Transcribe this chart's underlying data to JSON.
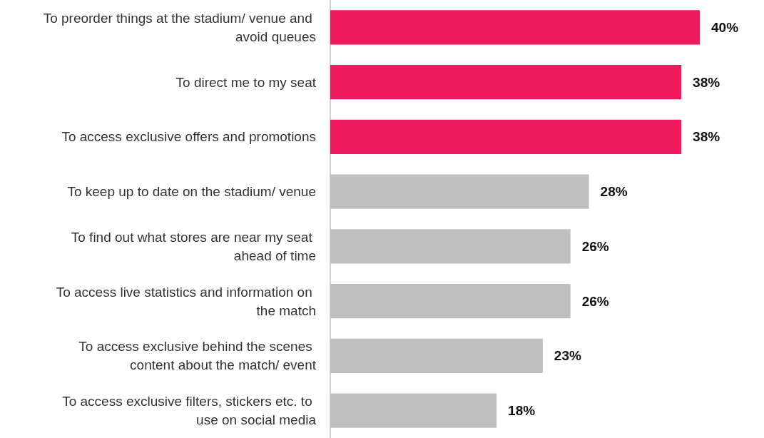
{
  "chart_data": {
    "type": "bar",
    "orientation": "horizontal",
    "categories": [
      "To preorder things at the stadium/ venue and avoid queues",
      "To direct me to my seat",
      "To access exclusive offers and promotions",
      "To keep up to date on the stadium/ venue",
      "To find out what stores are near my seat ahead of time",
      "To access live statistics and information on the match",
      "To access exclusive behind the scenes content about the match/ event",
      "To access exclusive filters, stickers etc. to use on social media"
    ],
    "values": [
      40,
      38,
      38,
      28,
      26,
      26,
      23,
      18
    ],
    "colors": [
      "#ef1a5e",
      "#ef1a5e",
      "#ef1a5e",
      "#bfbfbf",
      "#bfbfbf",
      "#bfbfbf",
      "#bfbfbf",
      "#bfbfbf"
    ],
    "value_labels": [
      "40%",
      "38%",
      "38%",
      "28%",
      "26%",
      "26%",
      "23%",
      "18%"
    ]
  }
}
